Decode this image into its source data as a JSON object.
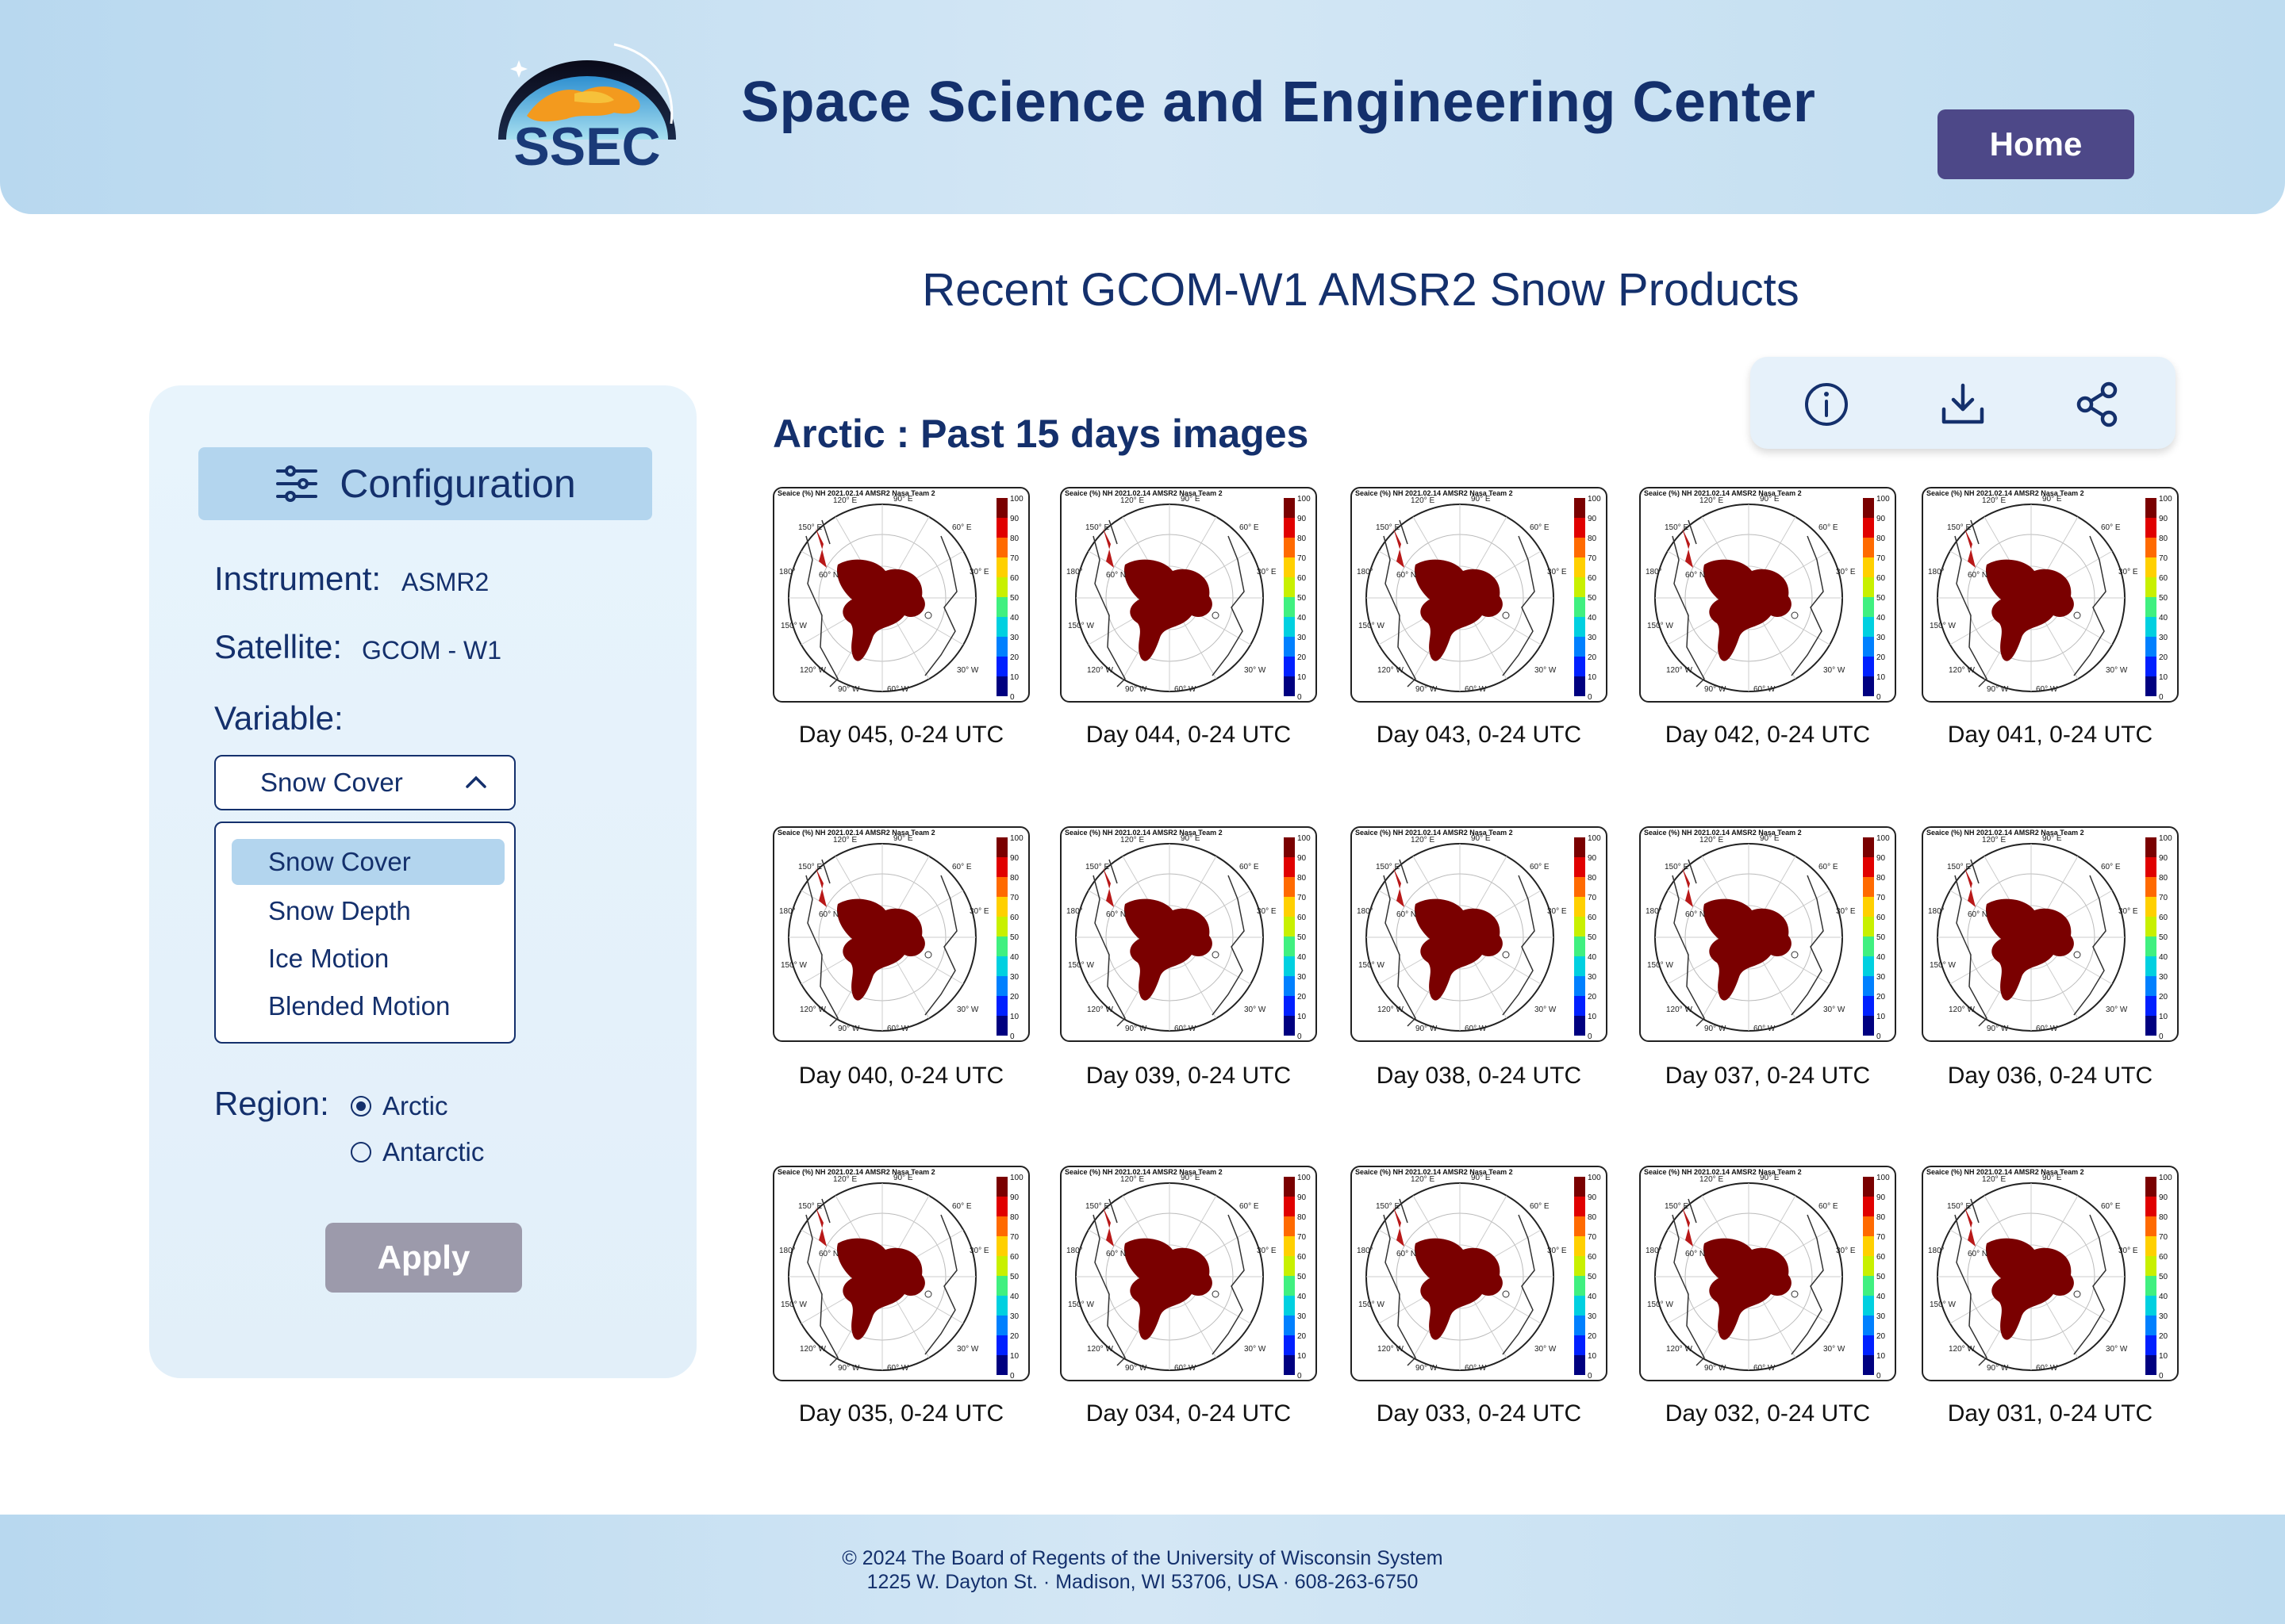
{
  "header": {
    "logo_text": "SSEC",
    "title": "Space Science and Engineering Center",
    "home_label": "Home"
  },
  "page_title": "Recent GCOM-W1 AMSR2 Snow Products",
  "sidebar": {
    "config_label": "Configuration",
    "instrument_label": "Instrument:",
    "instrument_value": "ASMR2",
    "satellite_label": "Satellite:",
    "satellite_value": "GCOM - W1",
    "variable_label": "Variable:",
    "variable_selected": "Snow Cover",
    "variable_options": [
      "Snow Cover",
      "Snow Depth",
      "Ice Motion",
      "Blended Motion"
    ],
    "region_label": "Region:",
    "region_options": [
      {
        "label": "Arctic",
        "checked": true
      },
      {
        "label": "Antarctic",
        "checked": false
      }
    ],
    "apply_label": "Apply"
  },
  "actions": [
    "info-icon",
    "download-icon",
    "share-icon"
  ],
  "section_title": "Arctic : Past 15 days images",
  "map_title": "Seaice (%) NH 2021.02.14 AMSR2 Nasa Team 2",
  "colorbar_ticks": [
    "100",
    "90",
    "80",
    "70",
    "60",
    "50",
    "40",
    "30",
    "20",
    "10",
    "0"
  ],
  "map_labels": [
    "120° E",
    "90° E",
    "60° E",
    "150° E",
    "180°",
    "150° W",
    "120° W",
    "90° W",
    "60° W",
    "30° W",
    "30° E",
    "60° N"
  ],
  "images": [
    {
      "caption": "Day 045, 0-24 UTC"
    },
    {
      "caption": "Day 044, 0-24 UTC"
    },
    {
      "caption": "Day 043, 0-24 UTC"
    },
    {
      "caption": "Day 042, 0-24 UTC"
    },
    {
      "caption": "Day 041, 0-24 UTC"
    },
    {
      "caption": "Day 040, 0-24 UTC"
    },
    {
      "caption": "Day 039, 0-24 UTC"
    },
    {
      "caption": "Day 038, 0-24 UTC"
    },
    {
      "caption": "Day 037, 0-24 UTC"
    },
    {
      "caption": "Day 036, 0-24 UTC"
    },
    {
      "caption": "Day 035, 0-24 UTC"
    },
    {
      "caption": "Day 034, 0-24 UTC"
    },
    {
      "caption": "Day 033, 0-24 UTC"
    },
    {
      "caption": "Day 032, 0-24 UTC"
    },
    {
      "caption": "Day 031, 0-24 UTC"
    }
  ],
  "footer": {
    "line1": "© 2024 The Board of Regents of the University of Wisconsin System",
    "line2": "1225 W. Dayton St. · Madison, WI 53706, USA · 608-263-6750"
  }
}
